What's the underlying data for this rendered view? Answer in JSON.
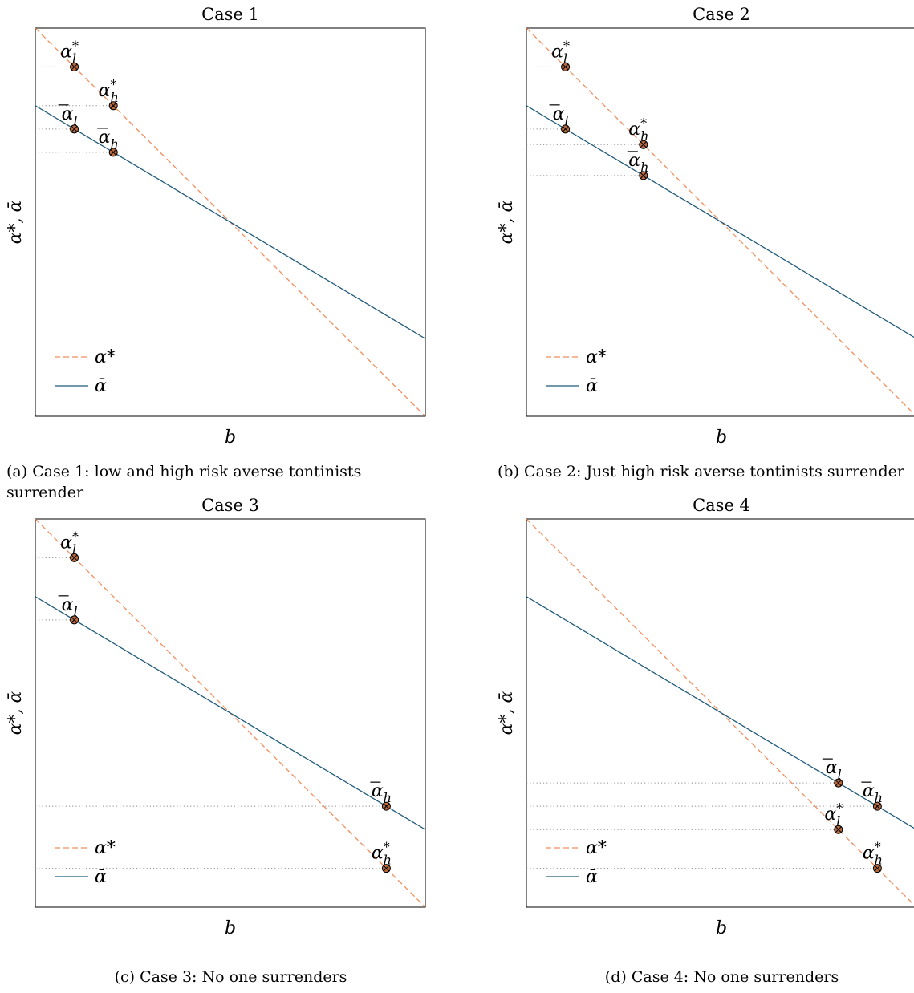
{
  "chart_data": [
    {
      "type": "line",
      "title": "Case 1",
      "xlabel": "b",
      "ylabel": "α*, ᾱ",
      "caption": "(a) Case 1: low and high risk averse tontinists surrender",
      "xlim": [
        0,
        1
      ],
      "ylim": [
        0,
        1
      ],
      "ticks_shown": false,
      "grid": false,
      "legend_position": "bottom-left",
      "series": [
        {
          "name": "α*",
          "style": "dashed",
          "color": "#f28e5c",
          "x": [
            0,
            1
          ],
          "y": [
            1.0,
            0.0
          ]
        },
        {
          "name": "ᾱ",
          "style": "solid",
          "color": "#1f5a7a",
          "x": [
            0,
            1
          ],
          "y": [
            0.8,
            0.2
          ]
        }
      ],
      "points": [
        {
          "label": "α*_l",
          "base": "α",
          "sup": "*",
          "sub": "l",
          "bar": false,
          "x": 0.1,
          "y": 0.9,
          "dotted": true
        },
        {
          "label": "α*_h",
          "base": "α",
          "sup": "*",
          "sub": "h",
          "bar": false,
          "x": 0.2,
          "y": 0.8,
          "dotted": true
        },
        {
          "label": "ᾱ_l",
          "base": "α",
          "sup": "",
          "sub": "l",
          "bar": true,
          "x": 0.1,
          "y": 0.74,
          "dotted": true
        },
        {
          "label": "ᾱ_h",
          "base": "α",
          "sup": "",
          "sub": "h",
          "bar": true,
          "x": 0.2,
          "y": 0.68,
          "dotted": true
        }
      ]
    },
    {
      "type": "line",
      "title": "Case 2",
      "xlabel": "b",
      "ylabel": "α*, ᾱ",
      "caption": "(b) Case 2: Just high risk averse tontinists surrender",
      "xlim": [
        0,
        1
      ],
      "ylim": [
        0,
        1
      ],
      "ticks_shown": false,
      "grid": false,
      "legend_position": "bottom-left",
      "series": [
        {
          "name": "α*",
          "style": "dashed",
          "color": "#f28e5c",
          "x": [
            0,
            1
          ],
          "y": [
            1.0,
            0.0
          ]
        },
        {
          "name": "ᾱ",
          "style": "solid",
          "color": "#1f5a7a",
          "x": [
            0,
            1
          ],
          "y": [
            0.8,
            0.2
          ]
        }
      ],
      "points": [
        {
          "label": "α*_l",
          "base": "α",
          "sup": "*",
          "sub": "l",
          "bar": false,
          "x": 0.1,
          "y": 0.9,
          "dotted": true
        },
        {
          "label": "ᾱ_l",
          "base": "α",
          "sup": "",
          "sub": "l",
          "bar": true,
          "x": 0.1,
          "y": 0.74,
          "dotted": true
        },
        {
          "label": "α*_h",
          "base": "α",
          "sup": "*",
          "sub": "h",
          "bar": false,
          "x": 0.3,
          "y": 0.7,
          "dotted": true
        },
        {
          "label": "ᾱ_h",
          "base": "α",
          "sup": "",
          "sub": "h",
          "bar": true,
          "x": 0.3,
          "y": 0.62,
          "dotted": true
        }
      ]
    },
    {
      "type": "line",
      "title": "Case 3",
      "xlabel": "b",
      "ylabel": "α*, ᾱ",
      "caption": "(c) Case 3: No one surrenders",
      "xlim": [
        0,
        1
      ],
      "ylim": [
        0,
        1
      ],
      "ticks_shown": false,
      "grid": false,
      "legend_position": "bottom-left",
      "series": [
        {
          "name": "α*",
          "style": "dashed",
          "color": "#f28e5c",
          "x": [
            0,
            1
          ],
          "y": [
            1.0,
            0.0
          ]
        },
        {
          "name": "ᾱ",
          "style": "solid",
          "color": "#1f5a7a",
          "x": [
            0,
            1
          ],
          "y": [
            0.8,
            0.2
          ]
        }
      ],
      "points": [
        {
          "label": "α*_l",
          "base": "α",
          "sup": "*",
          "sub": "l",
          "bar": false,
          "x": 0.1,
          "y": 0.9,
          "dotted": true
        },
        {
          "label": "ᾱ_l",
          "base": "α",
          "sup": "",
          "sub": "l",
          "bar": true,
          "x": 0.1,
          "y": 0.74,
          "dotted": true
        },
        {
          "label": "ᾱ_h",
          "base": "α",
          "sup": "",
          "sub": "h",
          "bar": true,
          "x": 0.9,
          "y": 0.26,
          "dotted": true
        },
        {
          "label": "α*_h",
          "base": "α",
          "sup": "*",
          "sub": "h",
          "bar": false,
          "x": 0.9,
          "y": 0.1,
          "dotted": true
        }
      ]
    },
    {
      "type": "line",
      "title": "Case 4",
      "xlabel": "b",
      "ylabel": "α*, ᾱ",
      "caption": "(d) Case 4: No one surrenders",
      "xlim": [
        0,
        1
      ],
      "ylim": [
        0,
        1
      ],
      "ticks_shown": false,
      "grid": false,
      "legend_position": "bottom-left",
      "series": [
        {
          "name": "α*",
          "style": "dashed",
          "color": "#f28e5c",
          "x": [
            0,
            1
          ],
          "y": [
            1.0,
            0.0
          ]
        },
        {
          "name": "ᾱ",
          "style": "solid",
          "color": "#1f5a7a",
          "x": [
            0,
            1
          ],
          "y": [
            0.8,
            0.2
          ]
        }
      ],
      "points": [
        {
          "label": "ᾱ_l",
          "base": "α",
          "sup": "",
          "sub": "l",
          "bar": true,
          "x": 0.8,
          "y": 0.32,
          "dotted": true
        },
        {
          "label": "ᾱ_h",
          "base": "α",
          "sup": "",
          "sub": "h",
          "bar": true,
          "x": 0.9,
          "y": 0.26,
          "dotted": true
        },
        {
          "label": "α*_l",
          "base": "α",
          "sup": "*",
          "sub": "l",
          "bar": false,
          "x": 0.8,
          "y": 0.2,
          "dotted": true
        },
        {
          "label": "α*_h",
          "base": "α",
          "sup": "*",
          "sub": "h",
          "bar": false,
          "x": 0.9,
          "y": 0.1,
          "dotted": true
        }
      ]
    }
  ]
}
